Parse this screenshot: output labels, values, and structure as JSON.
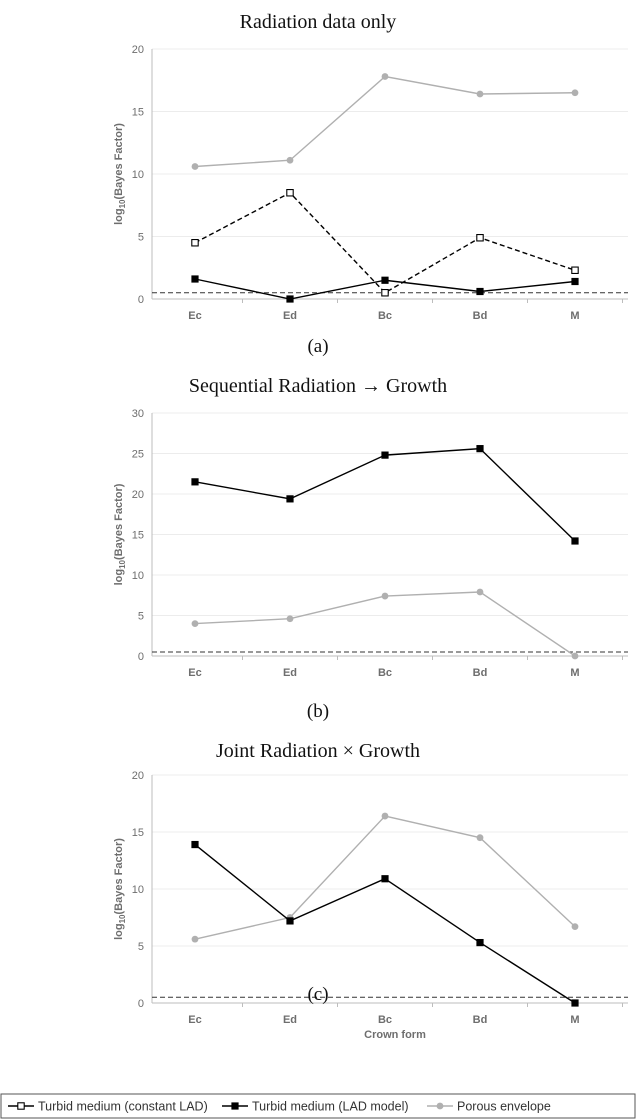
{
  "legend": [
    {
      "label": "Turbid medium (constant LAD)",
      "color": "#000000",
      "marker": "open-square",
      "dashed": true
    },
    {
      "label": "Turbid medium (LAD model)",
      "color": "#000000",
      "marker": "filled-square",
      "dashed": false
    },
    {
      "label": "Porous envelope",
      "color": "#b0b0b0",
      "marker": "circle",
      "dashed": false
    }
  ],
  "chart_data": [
    {
      "type": "line",
      "title": "Radiation data only",
      "subtitle": "(a)",
      "ylabel": "log10(Bayes Factor)",
      "xlabel": "",
      "categories": [
        "Ec",
        "Ed",
        "Bc",
        "Bd",
        "M"
      ],
      "ylim": [
        0,
        20
      ],
      "yticks": [
        0,
        5,
        10,
        15,
        20
      ],
      "threshold": 0.5,
      "series": [
        {
          "name": "Turbid medium (constant LAD)",
          "values": [
            4.5,
            8.5,
            0.5,
            4.9,
            2.3
          ],
          "color": "#000000",
          "marker": "open-square",
          "dashed": true
        },
        {
          "name": "Turbid medium (LAD model)",
          "values": [
            1.6,
            0.0,
            1.5,
            0.6,
            1.4
          ],
          "color": "#000000",
          "marker": "filled-square",
          "dashed": false
        },
        {
          "name": "Porous envelope",
          "values": [
            10.6,
            11.1,
            17.8,
            16.4,
            16.5
          ],
          "color": "#b0b0b0",
          "marker": "circle",
          "dashed": false
        }
      ]
    },
    {
      "type": "line",
      "title": "Sequential Radiation → Growth",
      "subtitle": "(b)",
      "ylabel": "log10(Bayes Factor)",
      "xlabel": "",
      "categories": [
        "Ec",
        "Ed",
        "Bc",
        "Bd",
        "M"
      ],
      "ylim": [
        0,
        30
      ],
      "yticks": [
        0,
        5,
        10,
        15,
        20,
        25,
        30
      ],
      "threshold": 0.5,
      "series": [
        {
          "name": "Turbid medium (LAD model)",
          "values": [
            21.5,
            19.4,
            24.8,
            25.6,
            14.2
          ],
          "color": "#000000",
          "marker": "filled-square",
          "dashed": false
        },
        {
          "name": "Porous envelope",
          "values": [
            4.0,
            4.6,
            7.4,
            7.9,
            0.0
          ],
          "color": "#b0b0b0",
          "marker": "circle",
          "dashed": false
        }
      ]
    },
    {
      "type": "line",
      "title": "Joint Radiation × Growth",
      "subtitle": "(c)",
      "ylabel": "log10(Bayes Factor)",
      "xlabel": "Crown form",
      "categories": [
        "Ec",
        "Ed",
        "Bc",
        "Bd",
        "M"
      ],
      "ylim": [
        0,
        20
      ],
      "yticks": [
        0,
        5,
        10,
        15,
        20
      ],
      "threshold": 0.5,
      "series": [
        {
          "name": "Turbid medium (LAD model)",
          "values": [
            13.9,
            7.2,
            10.9,
            5.3,
            0.0
          ],
          "color": "#000000",
          "marker": "filled-square",
          "dashed": false
        },
        {
          "name": "Porous envelope",
          "values": [
            5.6,
            7.5,
            16.4,
            14.5,
            6.7
          ],
          "color": "#b0b0b0",
          "marker": "circle",
          "dashed": false
        }
      ]
    }
  ]
}
